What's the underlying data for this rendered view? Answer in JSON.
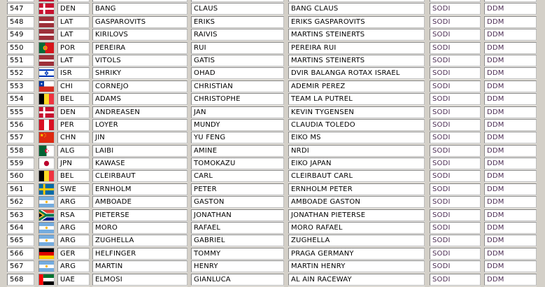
{
  "colors": {
    "page_background": "#d4d0c8",
    "cell_background": "#ffffff",
    "text": "#000000",
    "brand_text": "#4b2c53"
  },
  "flags": {
    "DEN": "flag-denmark-icon",
    "LAT": "flag-latvia-icon",
    "POR": "flag-portugal-icon",
    "ISR": "flag-israel-icon",
    "CHI": "flag-chile-icon",
    "BEL": "flag-belgium-icon",
    "PER": "flag-peru-icon",
    "CHN": "flag-china-icon",
    "ALG": "flag-algeria-icon",
    "JPN": "flag-japan-icon",
    "SWE": "flag-sweden-icon",
    "ARG": "flag-argentina-icon",
    "RSA": "flag-south-africa-icon",
    "GER": "flag-germany-icon",
    "UAE": "flag-uae-icon",
    "UNKNOWN": "flag-partial-red-icon"
  },
  "table": {
    "partial_top_row": {
      "visible": true,
      "position": "",
      "country_code": "",
      "last_name": "",
      "first_name": "",
      "team": "",
      "chassis": "",
      "engine": ""
    },
    "rows": [
      {
        "position": "547",
        "country_code": "DEN",
        "last_name": "BANG",
        "first_name": "CLAUS",
        "team": "BANG CLAUS",
        "chassis": "SODI",
        "engine": "DDM"
      },
      {
        "position": "548",
        "country_code": "LAT",
        "last_name": "GASPAROVITS",
        "first_name": "ERIKS",
        "team": "ERIKS GASPAROVITS",
        "chassis": "SODI",
        "engine": "DDM"
      },
      {
        "position": "549",
        "country_code": "LAT",
        "last_name": "KIRILOVS",
        "first_name": "RAIVIS",
        "team": "MARTINS STEINERTS",
        "chassis": "SODI",
        "engine": "DDM"
      },
      {
        "position": "550",
        "country_code": "POR",
        "last_name": "PEREIRA",
        "first_name": "RUI",
        "team": "PEREIRA RUI",
        "chassis": "SODI",
        "engine": "DDM"
      },
      {
        "position": "551",
        "country_code": "LAT",
        "last_name": "VITOLS",
        "first_name": "GATIS",
        "team": "MARTINS STEINERTS",
        "chassis": "SODI",
        "engine": "DDM"
      },
      {
        "position": "552",
        "country_code": "ISR",
        "last_name": "SHRIKY",
        "first_name": "OHAD",
        "team": "DVIR BALANGA ROTAX ISRAEL",
        "chassis": "SODI",
        "engine": "DDM"
      },
      {
        "position": "553",
        "country_code": "CHI",
        "last_name": "CORNEJO",
        "first_name": "CHRISTIAN",
        "team": "ADEMIR PEREZ",
        "chassis": "SODI",
        "engine": "DDM"
      },
      {
        "position": "554",
        "country_code": "BEL",
        "last_name": "ADAMS",
        "first_name": "CHRISTOPHE",
        "team": "TEAM LA PUTREL",
        "chassis": "SODI",
        "engine": "DDM"
      },
      {
        "position": "555",
        "country_code": "DEN",
        "last_name": "ANDREASEN",
        "first_name": "JAN",
        "team": "KEVIN TYGENSEN",
        "chassis": "SODI",
        "engine": "DDM"
      },
      {
        "position": "556",
        "country_code": "PER",
        "last_name": "LOYER",
        "first_name": "MUNDY",
        "team": "CLAUDIA TOLEDO",
        "chassis": "SODI",
        "engine": "DDM"
      },
      {
        "position": "557",
        "country_code": "CHN",
        "last_name": "JIN",
        "first_name": "YU FENG",
        "team": "EIKO MS",
        "chassis": "SODI",
        "engine": "DDM"
      },
      {
        "position": "558",
        "country_code": "ALG",
        "last_name": "LAIBI",
        "first_name": "AMINE",
        "team": "NRDI",
        "chassis": "SODI",
        "engine": "DDM"
      },
      {
        "position": "559",
        "country_code": "JPN",
        "last_name": "KAWASE",
        "first_name": "TOMOKAZU",
        "team": "EIKO JAPAN",
        "chassis": "SODI",
        "engine": "DDM"
      },
      {
        "position": "560",
        "country_code": "BEL",
        "last_name": "CLEIRBAUT",
        "first_name": "CARL",
        "team": "CLEIRBAUT CARL",
        "chassis": "SODI",
        "engine": "DDM"
      },
      {
        "position": "561",
        "country_code": "SWE",
        "last_name": "ERNHOLM",
        "first_name": "PETER",
        "team": "ERNHOLM PETER",
        "chassis": "SODI",
        "engine": "DDM"
      },
      {
        "position": "562",
        "country_code": "ARG",
        "last_name": "AMBOADE",
        "first_name": "GASTON",
        "team": "AMBOADE GASTON",
        "chassis": "SODI",
        "engine": "DDM"
      },
      {
        "position": "563",
        "country_code": "RSA",
        "last_name": "PIETERSE",
        "first_name": "JONATHAN",
        "team": "JONATHAN PIETERSE",
        "chassis": "SODI",
        "engine": "DDM"
      },
      {
        "position": "564",
        "country_code": "ARG",
        "last_name": "MORO",
        "first_name": "RAFAEL",
        "team": "MORO RAFAEL",
        "chassis": "SODI",
        "engine": "DDM"
      },
      {
        "position": "565",
        "country_code": "ARG",
        "last_name": "ZUGHELLA",
        "first_name": "GABRIEL",
        "team": "ZUGHELLA",
        "chassis": "SODI",
        "engine": "DDM"
      },
      {
        "position": "566",
        "country_code": "GER",
        "last_name": "HELFINGER",
        "first_name": "TOMMY",
        "team": "PRAGA GERMANY",
        "chassis": "SODI",
        "engine": "DDM"
      },
      {
        "position": "567",
        "country_code": "ARG",
        "last_name": "MARTIN",
        "first_name": "HENRY",
        "team": "MARTIN HENRY",
        "chassis": "SODI",
        "engine": "DDM"
      },
      {
        "position": "568",
        "country_code": "UAE",
        "last_name": "ELMOSI",
        "first_name": "GIANLUCA",
        "team": "AL AIN RACEWAY",
        "chassis": "SODI",
        "engine": "DDM"
      }
    ]
  }
}
